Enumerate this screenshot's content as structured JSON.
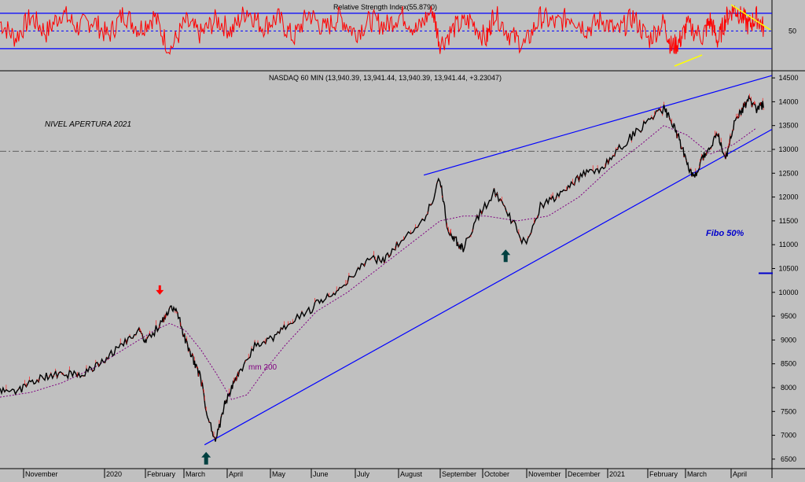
{
  "rsi_panel": {
    "title": "Relative Strength Index(55.8790)",
    "ticks": [
      "50"
    ],
    "bands": {
      "upper": 70,
      "mid": 50,
      "lower": 30
    }
  },
  "price_panel": {
    "header": "NASDAQ 60 MIN (13,940.39, 13,941.44, 13,940.39, 13,941.44, +3.23047)",
    "annotations": {
      "level_label": "NIVEL APERTURA 2021",
      "ma_label": "mm 200",
      "fibo_label": "Fibo 50%"
    }
  },
  "colors": {
    "background": "#c0c0c0",
    "rsi_line": "#ff0000",
    "bands": "#0000ff",
    "trendlines": "#0000ff",
    "moving_average": "#800080",
    "down_arrow": "#ff0000",
    "up_arrow": "#004040",
    "fibo": "#0000cc",
    "yellow_divergence": "#ffff00"
  },
  "chart_data": {
    "type": "line",
    "y_axis": {
      "ticks": [
        6500,
        7000,
        7500,
        8000,
        8500,
        9000,
        9500,
        10000,
        10500,
        11000,
        11500,
        12000,
        12500,
        13000,
        13500,
        14000,
        14500
      ],
      "ylim": [
        6300,
        14650
      ]
    },
    "x_labels": [
      "November",
      "2020",
      "February",
      "March",
      "April",
      "May",
      "June",
      "July",
      "August",
      "September",
      "October",
      "November",
      "December",
      "2021",
      "February",
      "March",
      "April"
    ],
    "price_series": [
      [
        0.0,
        7960
      ],
      [
        0.02,
        7900
      ],
      [
        0.04,
        8100
      ],
      [
        0.06,
        8250
      ],
      [
        0.08,
        8300
      ],
      [
        0.1,
        8250
      ],
      [
        0.12,
        8400
      ],
      [
        0.14,
        8650
      ],
      [
        0.16,
        8900
      ],
      [
        0.18,
        9250
      ],
      [
        0.19,
        8950
      ],
      [
        0.21,
        9400
      ],
      [
        0.22,
        9700
      ],
      [
        0.23,
        9550
      ],
      [
        0.24,
        9000
      ],
      [
        0.25,
        8600
      ],
      [
        0.26,
        8200
      ],
      [
        0.27,
        7300
      ],
      [
        0.28,
        6900
      ],
      [
        0.29,
        7600
      ],
      [
        0.3,
        8000
      ],
      [
        0.31,
        8300
      ],
      [
        0.33,
        8900
      ],
      [
        0.35,
        9000
      ],
      [
        0.37,
        9300
      ],
      [
        0.4,
        9600
      ],
      [
        0.42,
        9900
      ],
      [
        0.44,
        10100
      ],
      [
        0.46,
        10400
      ],
      [
        0.48,
        10700
      ],
      [
        0.5,
        10700
      ],
      [
        0.52,
        11100
      ],
      [
        0.55,
        11500
      ],
      [
        0.57,
        12400
      ],
      [
        0.58,
        11300
      ],
      [
        0.59,
        11100
      ],
      [
        0.6,
        10900
      ],
      [
        0.62,
        11600
      ],
      [
        0.64,
        12100
      ],
      [
        0.66,
        11600
      ],
      [
        0.68,
        11000
      ],
      [
        0.7,
        11800
      ],
      [
        0.72,
        12000
      ],
      [
        0.74,
        12300
      ],
      [
        0.76,
        12500
      ],
      [
        0.78,
        12600
      ],
      [
        0.8,
        13000
      ],
      [
        0.82,
        13300
      ],
      [
        0.84,
        13600
      ],
      [
        0.86,
        13850
      ],
      [
        0.87,
        13600
      ],
      [
        0.88,
        13200
      ],
      [
        0.89,
        12700
      ],
      [
        0.9,
        12400
      ],
      [
        0.91,
        12800
      ],
      [
        0.92,
        13100
      ],
      [
        0.93,
        13300
      ],
      [
        0.94,
        12800
      ],
      [
        0.95,
        13500
      ],
      [
        0.96,
        13800
      ],
      [
        0.97,
        14050
      ],
      [
        0.98,
        13850
      ],
      [
        0.99,
        13950
      ]
    ],
    "ma200": [
      [
        0.0,
        7800
      ],
      [
        0.04,
        7900
      ],
      [
        0.08,
        8100
      ],
      [
        0.12,
        8400
      ],
      [
        0.16,
        8800
      ],
      [
        0.2,
        9200
      ],
      [
        0.22,
        9350
      ],
      [
        0.24,
        9200
      ],
      [
        0.26,
        8800
      ],
      [
        0.28,
        8300
      ],
      [
        0.3,
        7750
      ],
      [
        0.32,
        7850
      ],
      [
        0.34,
        8300
      ],
      [
        0.37,
        8900
      ],
      [
        0.41,
        9600
      ],
      [
        0.45,
        10000
      ],
      [
        0.49,
        10500
      ],
      [
        0.53,
        11000
      ],
      [
        0.57,
        11500
      ],
      [
        0.6,
        11600
      ],
      [
        0.63,
        11600
      ],
      [
        0.67,
        11500
      ],
      [
        0.71,
        11600
      ],
      [
        0.75,
        12000
      ],
      [
        0.79,
        12600
      ],
      [
        0.83,
        13100
      ],
      [
        0.86,
        13500
      ],
      [
        0.89,
        13300
      ],
      [
        0.92,
        12900
      ],
      [
        0.95,
        13100
      ],
      [
        0.98,
        13450
      ]
    ],
    "rsi_series": [
      [
        0.0,
        60
      ],
      [
        0.02,
        42
      ],
      [
        0.04,
        66
      ],
      [
        0.06,
        48
      ],
      [
        0.08,
        71
      ],
      [
        0.1,
        54
      ],
      [
        0.12,
        62
      ],
      [
        0.14,
        44
      ],
      [
        0.16,
        70
      ],
      [
        0.18,
        52
      ],
      [
        0.2,
        67
      ],
      [
        0.22,
        28
      ],
      [
        0.24,
        60
      ],
      [
        0.26,
        46
      ],
      [
        0.28,
        63
      ],
      [
        0.3,
        50
      ],
      [
        0.32,
        74
      ],
      [
        0.34,
        55
      ],
      [
        0.36,
        65
      ],
      [
        0.38,
        42
      ],
      [
        0.4,
        70
      ],
      [
        0.42,
        52
      ],
      [
        0.44,
        66
      ],
      [
        0.46,
        48
      ],
      [
        0.48,
        62
      ],
      [
        0.5,
        56
      ],
      [
        0.52,
        69
      ],
      [
        0.54,
        50
      ],
      [
        0.56,
        75
      ],
      [
        0.57,
        35
      ],
      [
        0.59,
        55
      ],
      [
        0.61,
        62
      ],
      [
        0.63,
        40
      ],
      [
        0.64,
        71
      ],
      [
        0.66,
        46
      ],
      [
        0.68,
        34
      ],
      [
        0.7,
        66
      ],
      [
        0.72,
        58
      ],
      [
        0.74,
        67
      ],
      [
        0.76,
        52
      ],
      [
        0.78,
        63
      ],
      [
        0.8,
        48
      ],
      [
        0.82,
        66
      ],
      [
        0.84,
        40
      ],
      [
        0.86,
        60
      ],
      [
        0.87,
        31
      ],
      [
        0.88,
        38
      ],
      [
        0.89,
        56
      ],
      [
        0.91,
        44
      ],
      [
        0.92,
        62
      ],
      [
        0.93,
        38
      ],
      [
        0.94,
        64
      ],
      [
        0.95,
        76
      ],
      [
        0.96,
        68
      ],
      [
        0.97,
        56
      ],
      [
        0.98,
        66
      ],
      [
        0.99,
        52
      ]
    ],
    "trendlines": {
      "upper": [
        [
          0.549,
          12460
        ],
        [
          1.0,
          14550
        ]
      ],
      "lower": [
        [
          0.265,
          6800
        ],
        [
          1.0,
          13420
        ]
      ],
      "opening_2021_level": 12960,
      "fibo_50": 10400
    },
    "markers": {
      "down_arrow": [
        0.207,
        9950
      ],
      "up_arrows": [
        [
          0.267,
          6650
        ],
        [
          0.655,
          10900
        ]
      ]
    }
  }
}
